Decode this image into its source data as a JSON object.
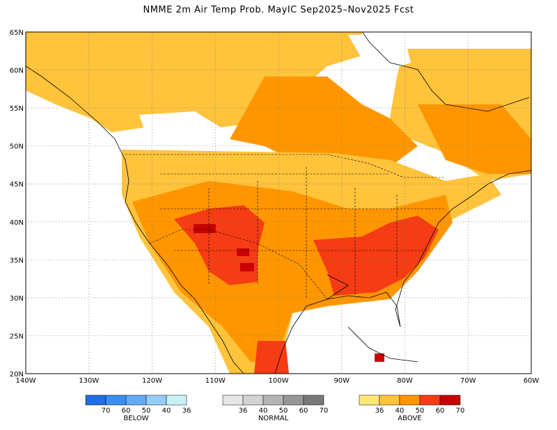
{
  "title": "NMME 2m Air Temp Prob. MayIC  Sep2025–Nov2025 Fcst",
  "map": {
    "lon_ticks": [
      "140W",
      "130W",
      "120W",
      "110W",
      "100W",
      "90W",
      "80W",
      "70W",
      "60W"
    ],
    "lat_ticks": [
      "65N",
      "60N",
      "55N",
      "50N",
      "45N",
      "40N",
      "35N",
      "30N",
      "25N",
      "20N"
    ],
    "lon_range": [
      -140,
      -60
    ],
    "lat_range": [
      20,
      65
    ],
    "grid": true
  },
  "legend": {
    "below": {
      "label": "BELOW",
      "values": [
        "70",
        "60",
        "50",
        "40",
        "36"
      ],
      "colors": [
        "#1e6ee6",
        "#3c8ef0",
        "#64aaf5",
        "#96ccf8",
        "#c8f0f8"
      ]
    },
    "normal": {
      "label": "NORMAL",
      "values": [
        "36",
        "40",
        "50",
        "60",
        "70"
      ],
      "colors": [
        "#e6e6e6",
        "#d2d2d2",
        "#b4b4b4",
        "#969696",
        "#787878"
      ]
    },
    "above": {
      "label": "ABOVE",
      "values": [
        "36",
        "40",
        "50",
        "60",
        "70"
      ],
      "colors": [
        "#ffe678",
        "#ffc33c",
        "#ff9600",
        "#f53c14",
        "#c80000"
      ]
    }
  }
}
